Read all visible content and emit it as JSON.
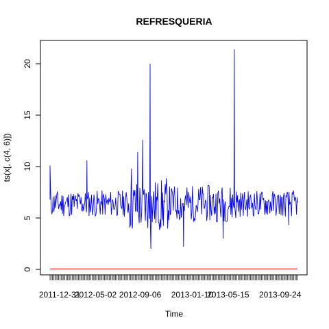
{
  "chart_data": {
    "type": "line",
    "title": "REFRESQUERIA",
    "xlabel": "Time",
    "ylabel": "ts(x[, c(4, 6)])",
    "xlim": [
      1,
      1000
    ],
    "ylim": [
      -0.8,
      22
    ],
    "y_ticks": [
      0,
      5,
      10,
      15,
      20
    ],
    "x_tick_labels": [
      {
        "x": 40,
        "label": "2011-12-31"
      },
      {
        "x": 185,
        "label": "2012-05-02"
      },
      {
        "x": 365,
        "label": "2012-09-06"
      },
      {
        "x": 575,
        "label": "2013-01-10"
      },
      {
        "x": 720,
        "label": "2013-05-15"
      },
      {
        "x": 930,
        "label": "2013-09-24"
      }
    ],
    "grid": false,
    "series": [
      {
        "color": "#0000ff",
        "summary_values": [
          {
            "x": 1,
            "y": 10.1
          },
          {
            "x": 90,
            "y": 6.5
          },
          {
            "x": 150,
            "y": 10.6
          },
          {
            "x": 230,
            "y": 6.4
          },
          {
            "x": 330,
            "y": 9.8
          },
          {
            "x": 355,
            "y": 11.4
          },
          {
            "x": 375,
            "y": 12.6
          },
          {
            "x": 405,
            "y": 20.0
          },
          {
            "x": 408,
            "y": 2.0
          },
          {
            "x": 540,
            "y": 2.2
          },
          {
            "x": 700,
            "y": 3.0
          },
          {
            "x": 745,
            "y": 21.4
          },
          {
            "x": 820,
            "y": 6.0
          },
          {
            "x": 965,
            "y": 4.3
          },
          {
            "x": 1000,
            "y": 6.5
          }
        ]
      },
      {
        "color": "#ff0000",
        "constant_value": 0.05
      }
    ]
  }
}
